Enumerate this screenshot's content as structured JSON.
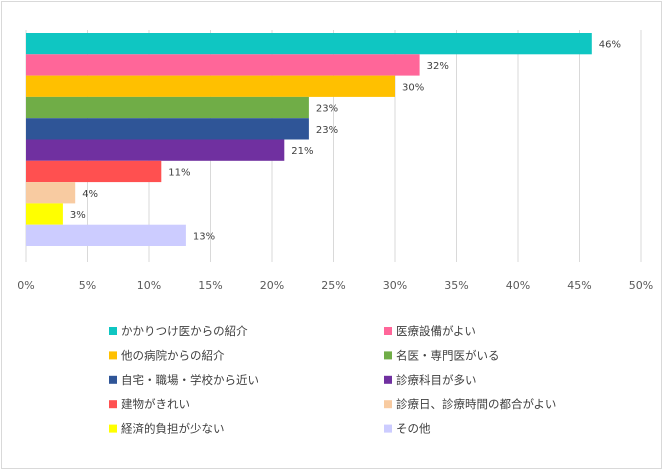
{
  "chart_data": {
    "type": "bar",
    "orientation": "horizontal",
    "categories": [
      "かかりつけ医からの紹介",
      "医療設備がよい",
      "他の病院からの紹介",
      "名医・専門医がいる",
      "自宅・職場・学校から近い",
      "診療科目が多い",
      "建物がきれい",
      "診療日、診療時間の都合がよい",
      "経済的負担が少ない",
      "その他"
    ],
    "values": [
      46,
      32,
      30,
      23,
      23,
      21,
      11,
      4,
      3,
      13
    ],
    "data_labels": [
      "46%",
      "32%",
      "30%",
      "23%",
      "23%",
      "21%",
      "11%",
      "4%",
      "3%",
      "13%"
    ],
    "colors": [
      "#0fc6c2",
      "#ff6699",
      "#ffc000",
      "#70ad47",
      "#2f5597",
      "#7030a0",
      "#ff5050",
      "#f8cba1",
      "#ffff00",
      "#ccccff"
    ],
    "xlim": [
      0,
      50
    ],
    "x_ticks": [
      "0%",
      "5%",
      "10%",
      "15%",
      "20%",
      "25%",
      "30%",
      "35%",
      "40%",
      "45%",
      "50%"
    ],
    "grid": true,
    "legend_position": "bottom",
    "title": "",
    "xlabel": "",
    "ylabel": ""
  }
}
